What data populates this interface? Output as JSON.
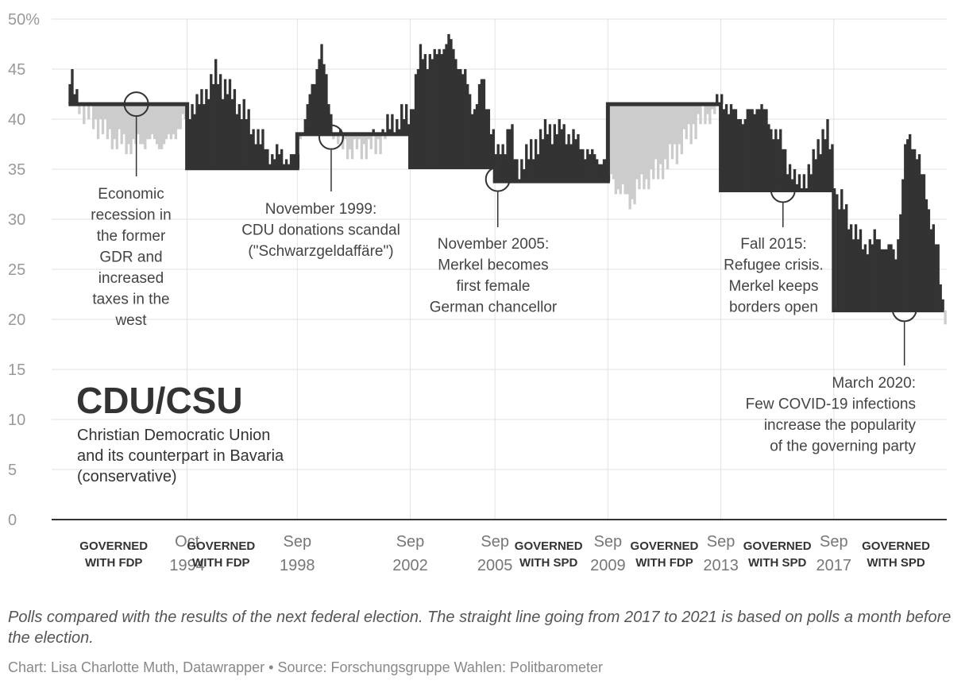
{
  "chart_data": {
    "type": "bar",
    "title": "CDU/CSU",
    "subtitle_lines": [
      "Christian Democratic Union",
      "and its counterpart in Bavaria",
      "(conservative)"
    ],
    "ylabel": "",
    "ylim": [
      0,
      50
    ],
    "y_ticks": [
      {
        "value": 0,
        "label": "0"
      },
      {
        "value": 5,
        "label": "5"
      },
      {
        "value": 10,
        "label": "10"
      },
      {
        "value": 15,
        "label": "15"
      },
      {
        "value": 20,
        "label": "20"
      },
      {
        "value": 25,
        "label": "25"
      },
      {
        "value": 30,
        "label": "30"
      },
      {
        "value": 35,
        "label": "35"
      },
      {
        "value": 40,
        "label": "40"
      },
      {
        "value": 45,
        "label": "45"
      },
      {
        "value": 50,
        "label": "50%"
      }
    ],
    "x_range": [
      1990.0,
      2021.7
    ],
    "x_ticks": [
      {
        "value": 1994.8,
        "line1": "Oct",
        "line2": "1994"
      },
      {
        "value": 1998.7,
        "line1": "Sep",
        "line2": "1998"
      },
      {
        "value": 2002.7,
        "line1": "Sep",
        "line2": "2002"
      },
      {
        "value": 2005.7,
        "line1": "Sep",
        "line2": "2005"
      },
      {
        "value": 2009.7,
        "line1": "Sep",
        "line2": "2009"
      },
      {
        "value": 2013.7,
        "line1": "Sep",
        "line2": "2013"
      },
      {
        "value": 2017.7,
        "line1": "Sep",
        "line2": "2017"
      }
    ],
    "government_labels": [
      {
        "x": 1992.2,
        "line1": "GOVERNED",
        "line2": "WITH FDP"
      },
      {
        "x": 1996.0,
        "line1": "GOVERNED",
        "line2": "WITH FDP"
      },
      {
        "x": 2007.6,
        "line1": "GOVERNED",
        "line2": "WITH SPD"
      },
      {
        "x": 2011.7,
        "line1": "GOVERNED",
        "line2": "WITH FDP"
      },
      {
        "x": 2015.7,
        "line1": "GOVERNED",
        "line2": "WITH SPD"
      },
      {
        "x": 2019.9,
        "line1": "GOVERNED",
        "line2": "WITH SPD"
      }
    ],
    "election_results": [
      {
        "from": 1990.6,
        "to": 1994.8,
        "value": 41.5
      },
      {
        "from": 1994.8,
        "to": 1998.7,
        "value": 35.1
      },
      {
        "from": 1998.7,
        "to": 2002.7,
        "value": 38.5
      },
      {
        "from": 2002.7,
        "to": 2005.7,
        "value": 35.2
      },
      {
        "from": 2005.7,
        "to": 2009.7,
        "value": 33.8
      },
      {
        "from": 2009.7,
        "to": 2013.7,
        "value": 41.5
      },
      {
        "from": 2013.7,
        "to": 2017.7,
        "value": 32.9
      },
      {
        "from": 2017.7,
        "to": 2021.6,
        "value": 20.9
      }
    ],
    "series": [
      {
        "name": "Polls",
        "anchors": [
          [
            1990.6,
            44.5
          ],
          [
            1990.8,
            42.5
          ],
          [
            1991.0,
            41.0
          ],
          [
            1991.4,
            40.0
          ],
          [
            1991.9,
            38.5
          ],
          [
            1992.5,
            37.5
          ],
          [
            1993.0,
            37.5
          ],
          [
            1993.5,
            38.0
          ],
          [
            1994.0,
            37.5
          ],
          [
            1994.4,
            39.0
          ],
          [
            1994.75,
            40.0
          ],
          [
            1994.8,
            41.0
          ],
          [
            1995.3,
            42.0
          ],
          [
            1995.8,
            44.5
          ],
          [
            1996.2,
            43.0
          ],
          [
            1996.7,
            41.0
          ],
          [
            1997.2,
            38.5
          ],
          [
            1997.7,
            36.5
          ],
          [
            1998.2,
            36.5
          ],
          [
            1998.65,
            35.8
          ],
          [
            1998.7,
            37.5
          ],
          [
            1999.0,
            41.0
          ],
          [
            1999.3,
            44.5
          ],
          [
            1999.5,
            47.5
          ],
          [
            1999.7,
            43.0
          ],
          [
            2000.0,
            38.0
          ],
          [
            2000.5,
            37.0
          ],
          [
            2001.0,
            37.0
          ],
          [
            2001.5,
            37.5
          ],
          [
            2002.0,
            39.5
          ],
          [
            2002.65,
            40.5
          ],
          [
            2002.7,
            41.0
          ],
          [
            2003.0,
            46.5
          ],
          [
            2003.5,
            46.0
          ],
          [
            2004.0,
            48.0
          ],
          [
            2004.5,
            45.0
          ],
          [
            2004.9,
            41.0
          ],
          [
            2005.2,
            44.0
          ],
          [
            2005.45,
            40.5
          ],
          [
            2005.65,
            38.0
          ],
          [
            2005.7,
            36.0
          ],
          [
            2006.0,
            37.5
          ],
          [
            2006.2,
            40.0
          ],
          [
            2006.4,
            35.0
          ],
          [
            2007.0,
            37.0
          ],
          [
            2007.5,
            39.0
          ],
          [
            2008.0,
            39.0
          ],
          [
            2008.5,
            38.0
          ],
          [
            2009.0,
            36.5
          ],
          [
            2009.65,
            35.5
          ],
          [
            2009.7,
            35.0
          ],
          [
            2010.0,
            33.0
          ],
          [
            2010.5,
            32.0
          ],
          [
            2011.0,
            34.0
          ],
          [
            2011.5,
            35.0
          ],
          [
            2012.0,
            36.5
          ],
          [
            2012.5,
            38.5
          ],
          [
            2013.0,
            40.0
          ],
          [
            2013.65,
            41.5
          ],
          [
            2013.7,
            42.0
          ],
          [
            2014.0,
            41.0
          ],
          [
            2014.5,
            40.0
          ],
          [
            2015.0,
            41.5
          ],
          [
            2015.5,
            39.0
          ],
          [
            2015.9,
            37.0
          ],
          [
            2016.3,
            33.5
          ],
          [
            2016.8,
            34.5
          ],
          [
            2017.1,
            37.5
          ],
          [
            2017.4,
            39.0
          ],
          [
            2017.65,
            36.0
          ],
          [
            2017.7,
            32.0
          ],
          [
            2018.0,
            31.5
          ],
          [
            2018.4,
            28.5
          ],
          [
            2018.8,
            27.5
          ],
          [
            2019.2,
            28.0
          ],
          [
            2019.6,
            27.0
          ],
          [
            2019.85,
            26.5
          ],
          [
            2020.0,
            30.0
          ],
          [
            2020.15,
            36.0
          ],
          [
            2020.3,
            38.5
          ],
          [
            2020.6,
            36.5
          ],
          [
            2020.9,
            33.0
          ],
          [
            2021.1,
            30.0
          ],
          [
            2021.3,
            27.5
          ],
          [
            2021.5,
            22.0
          ],
          [
            2021.6,
            21.0
          ]
        ]
      }
    ],
    "annotations": [
      {
        "x": 1993.0,
        "y": 41.5,
        "lines": [
          "Economic",
          "recession in",
          "the former",
          "GDR and",
          "increased",
          "taxes in the",
          "west"
        ]
      },
      {
        "x": 1999.9,
        "y": 38.2,
        "lines": [
          "November 1999:",
          "CDU donations scandal",
          "(\"Schwarzgeldaffäre\")"
        ]
      },
      {
        "x": 2005.8,
        "y": 34.0,
        "lines": [
          "November 2005:",
          "Merkel becomes",
          "first female",
          "German chancellor"
        ]
      },
      {
        "x": 2015.9,
        "y": 32.9,
        "lines": [
          "Fall 2015:",
          "Refugee crisis.",
          "Merkel keeps",
          "borders open"
        ]
      },
      {
        "x": 2020.2,
        "y": 21.0,
        "lines": [
          "March 2020:",
          "Few COVID-19 infections",
          "increase the popularity",
          "of the governing party"
        ]
      }
    ]
  },
  "footer": {
    "note": "Polls compared with the results of the next federal election. The straight line going from 2017 to 2021 is based on polls a month before the election.",
    "credit": "Chart: Lisa Charlotte Muth, Datawrapper • Source: Forschungsgruppe Wahlen: Politbarometer"
  },
  "colors": {
    "above_result": "#333333",
    "below_result": "#cccccc",
    "result_line": "#333333",
    "grid": "#e2e2e2",
    "axis": "#333333"
  }
}
